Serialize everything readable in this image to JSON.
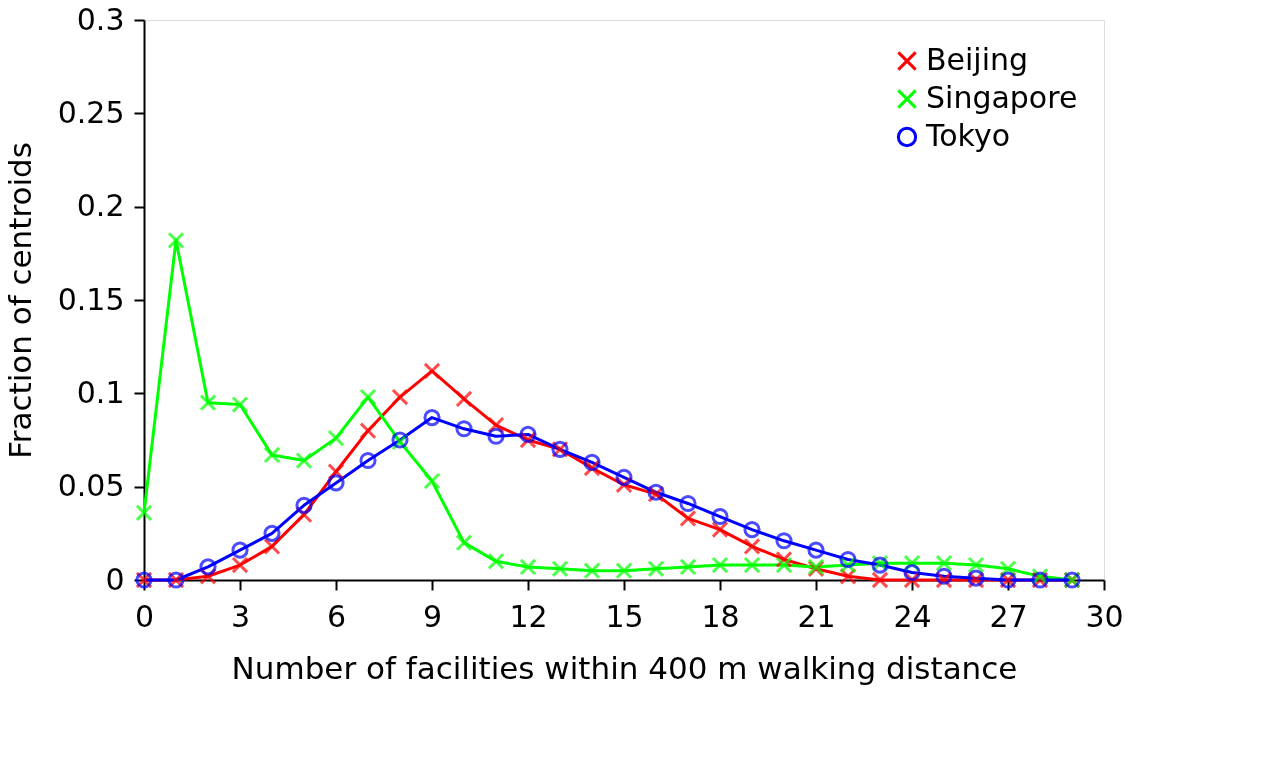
{
  "chart_data": {
    "type": "line",
    "xlabel": "Number of facilities within 400 m walking distance",
    "ylabel": "Fraction of centroids",
    "x": [
      0,
      1,
      2,
      3,
      4,
      5,
      6,
      7,
      8,
      9,
      10,
      11,
      12,
      13,
      14,
      15,
      16,
      17,
      18,
      19,
      20,
      21,
      22,
      23,
      24,
      25,
      26,
      27,
      28,
      29
    ],
    "series": [
      {
        "name": "Beijing",
        "color": "#ff0000",
        "marker": "cross",
        "values": [
          0,
          0,
          0.002,
          0.008,
          0.018,
          0.035,
          0.058,
          0.08,
          0.098,
          0.112,
          0.097,
          0.083,
          0.075,
          0.07,
          0.06,
          0.051,
          0.046,
          0.033,
          0.027,
          0.018,
          0.011,
          0.006,
          0.002,
          0,
          0,
          0,
          0,
          0,
          0,
          0
        ]
      },
      {
        "name": "Singapore",
        "color": "#00ff00",
        "marker": "cross",
        "values": [
          0.036,
          0.182,
          0.095,
          0.094,
          0.067,
          0.064,
          0.076,
          0.098,
          0.074,
          0.053,
          0.02,
          0.01,
          0.007,
          0.006,
          0.005,
          0.005,
          0.006,
          0.007,
          0.008,
          0.008,
          0.008,
          0.007,
          0.008,
          0.009,
          0.009,
          0.009,
          0.008,
          0.006,
          0.002,
          0
        ]
      },
      {
        "name": "Tokyo",
        "color": "#0000ff",
        "marker": "circle",
        "values": [
          0,
          0,
          0.007,
          0.016,
          0.025,
          0.04,
          0.052,
          0.064,
          0.075,
          0.087,
          0.081,
          0.077,
          0.078,
          0.07,
          0.063,
          0.055,
          0.047,
          0.041,
          0.034,
          0.027,
          0.021,
          0.016,
          0.011,
          0.008,
          0.004,
          0.002,
          0.001,
          0,
          0,
          0
        ]
      }
    ],
    "xlim": [
      0,
      30
    ],
    "xticks": [
      0,
      3,
      6,
      9,
      12,
      15,
      18,
      21,
      24,
      27,
      30
    ],
    "ylim": [
      0,
      0.3
    ],
    "yticks": [
      0,
      0.05,
      0.1,
      0.15,
      0.2,
      0.25,
      0.3
    ],
    "grid": false,
    "legend": "top right",
    "line_style": "solid"
  }
}
